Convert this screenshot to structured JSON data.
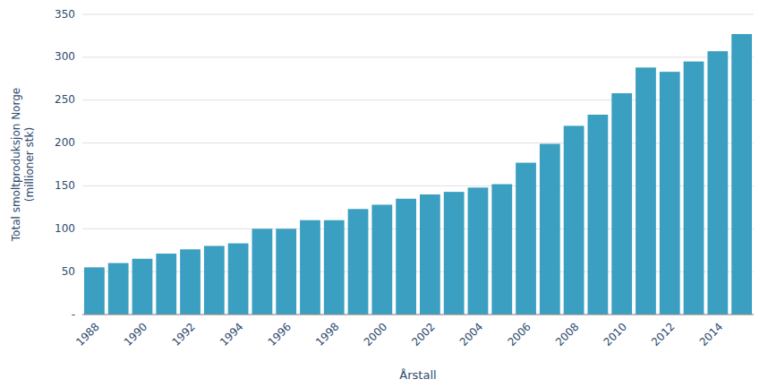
{
  "chart_data": {
    "type": "bar",
    "categories": [
      "1988",
      null,
      "1990",
      null,
      "1992",
      null,
      "1994",
      null,
      "1996",
      null,
      "1998",
      null,
      "2000",
      null,
      "2002",
      null,
      "2004",
      null,
      "2006",
      null,
      "2008",
      null,
      "2010",
      null,
      "2012",
      null,
      "2014",
      null
    ],
    "values": [
      55,
      60,
      65,
      71,
      76,
      80,
      83,
      100,
      100,
      110,
      110,
      123,
      128,
      135,
      140,
      143,
      148,
      152,
      177,
      199,
      220,
      233,
      258,
      288,
      283,
      295,
      307,
      327
    ],
    "color": "#3a9fc0",
    "x_label": "Årstall",
    "y_label": "Total smoltproduksjon Norge\n(millioner stk)",
    "ylim": [
      0,
      350
    ],
    "yticks": [
      {
        "value": 0,
        "label": "-"
      },
      50,
      100,
      150,
      200,
      250,
      300,
      350
    ],
    "grid": true
  }
}
